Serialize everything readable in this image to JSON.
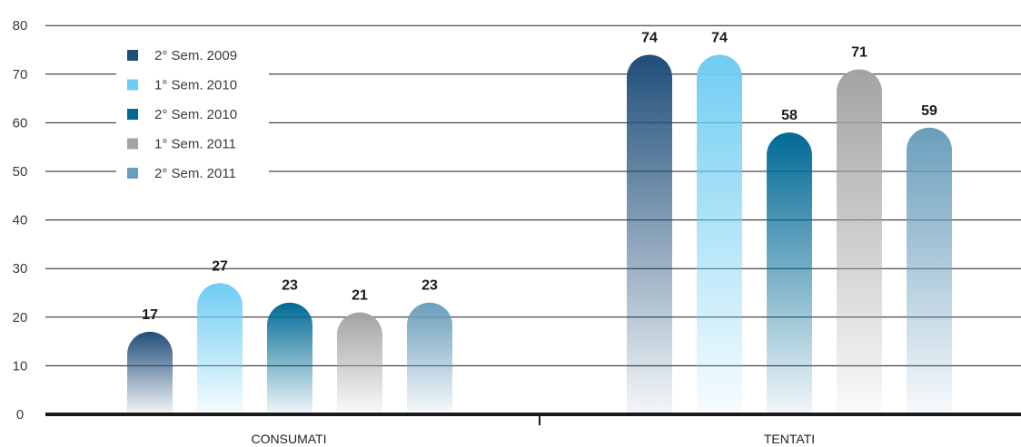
{
  "chart_data": {
    "type": "bar",
    "categories": [
      "CONSUMATI",
      "TENTATI"
    ],
    "series": [
      {
        "name": "2° Sem. 2009",
        "values": [
          17,
          74
        ],
        "color": "#1f4e79"
      },
      {
        "name": "1° Sem. 2010",
        "values": [
          27,
          74
        ],
        "color": "#6fcdf2"
      },
      {
        "name": "2° Sem. 2010",
        "values": [
          23,
          58
        ],
        "color": "#006a96"
      },
      {
        "name": "1° Sem. 2011",
        "values": [
          21,
          71
        ],
        "color": "#a3a3a6"
      },
      {
        "name": "2° Sem. 2011",
        "values": [
          23,
          59
        ],
        "color": "#6a9ebc"
      }
    ],
    "yticks": [
      "0",
      "10",
      "20",
      "30",
      "40",
      "50",
      "60",
      "70",
      "80"
    ],
    "ylim": [
      0,
      80
    ],
    "grid": true,
    "legend_position": "top-left",
    "data_labels": true
  }
}
